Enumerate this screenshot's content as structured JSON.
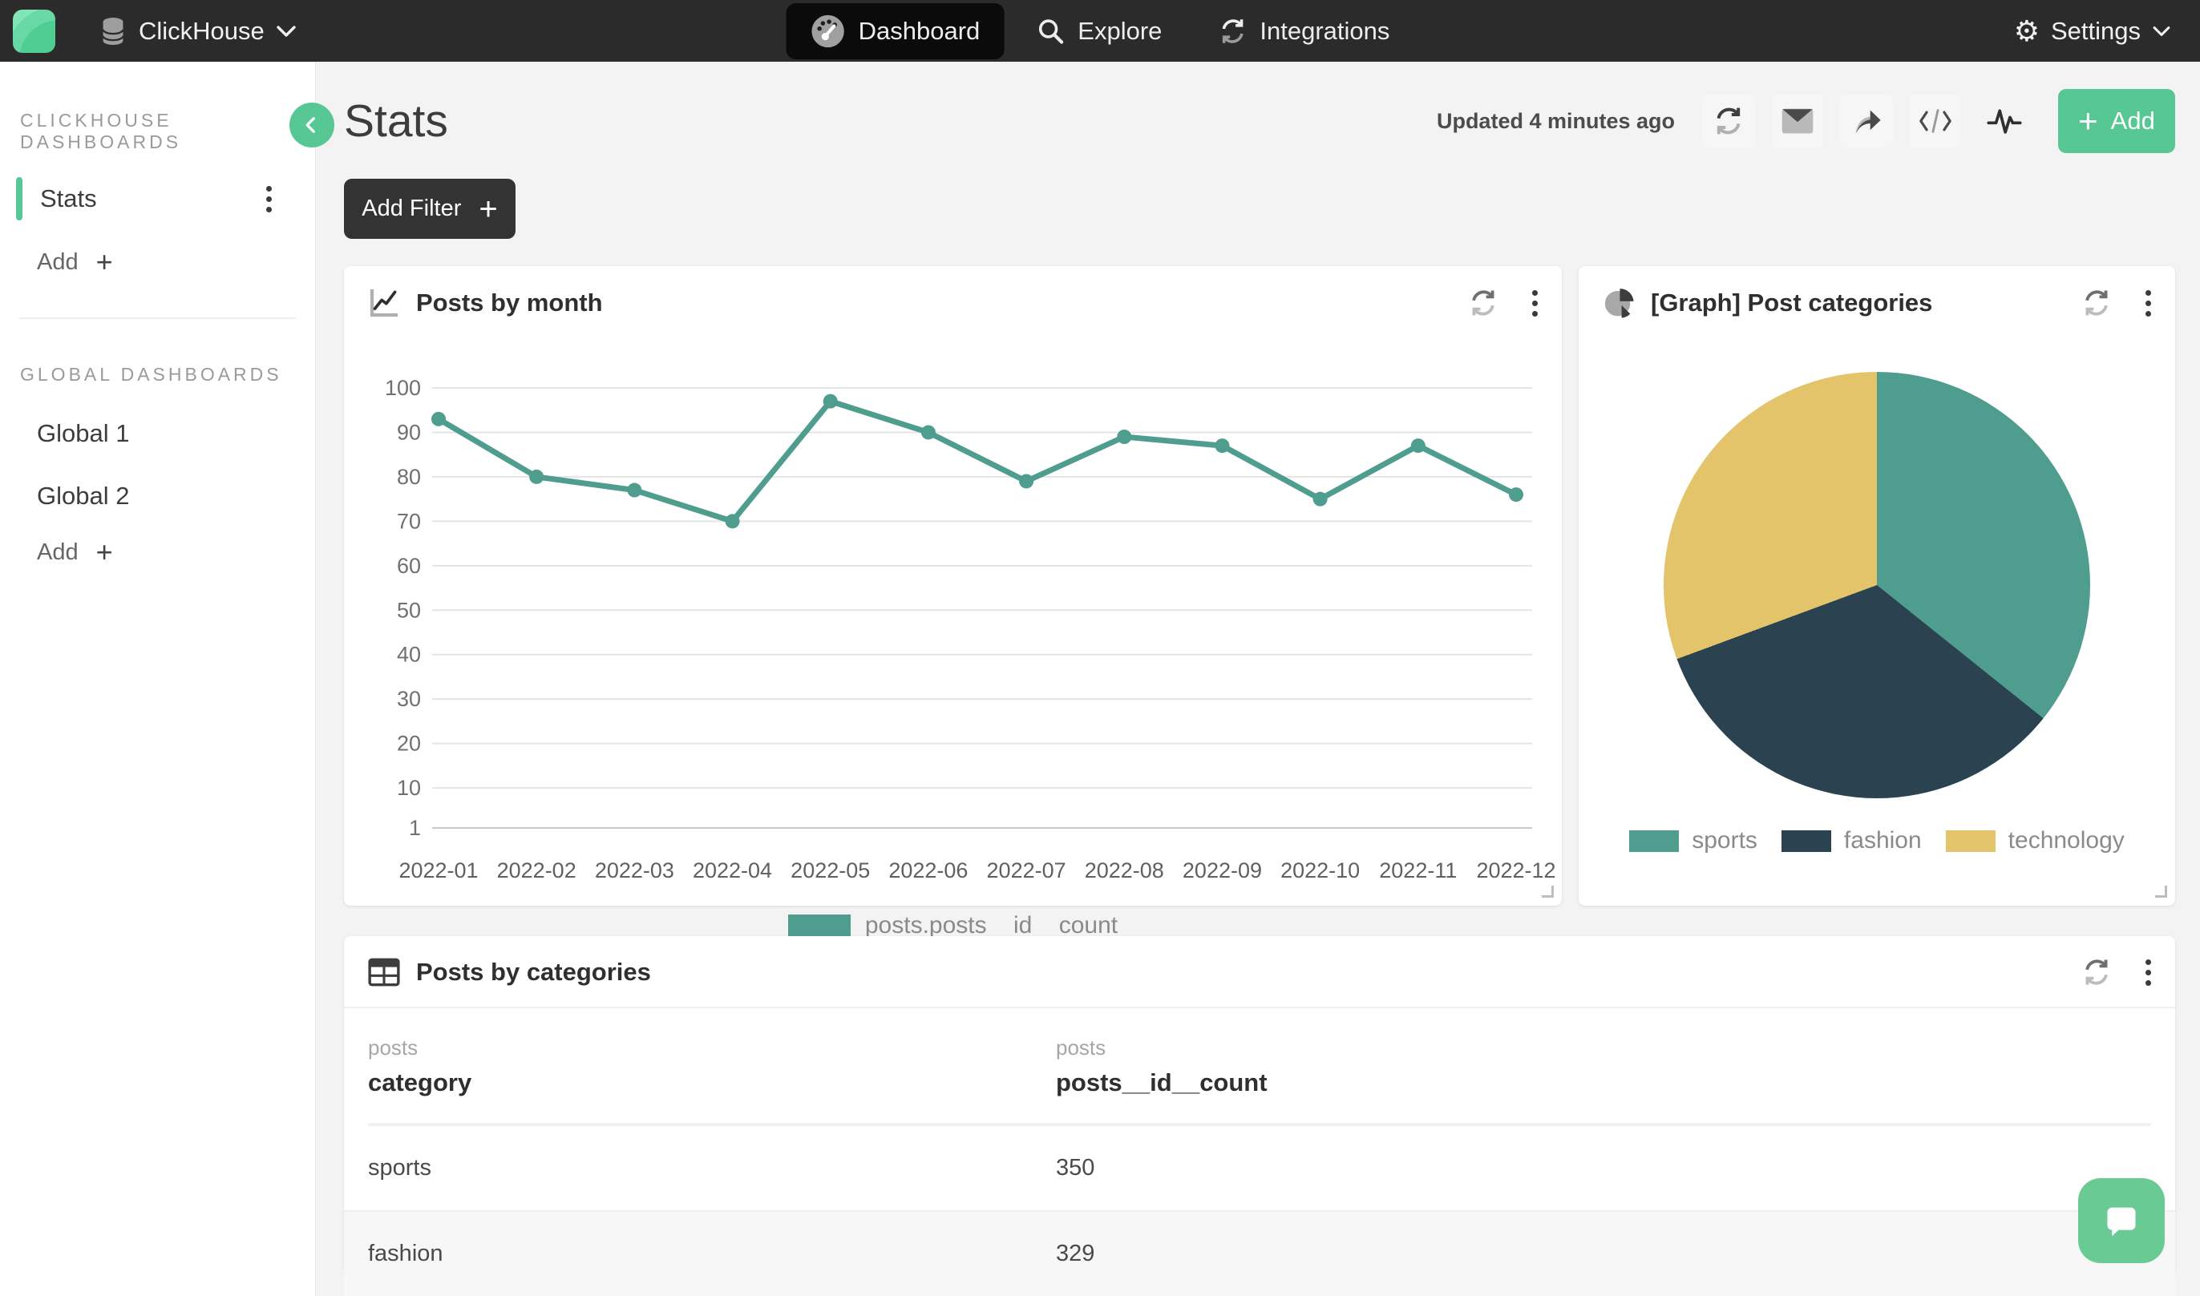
{
  "nav": {
    "brand": "ClickHouse",
    "tabs": [
      {
        "label": "Dashboard",
        "active": true
      },
      {
        "label": "Explore",
        "active": false
      },
      {
        "label": "Integrations",
        "active": false
      }
    ],
    "settings_label": "Settings"
  },
  "sidebar": {
    "sections": [
      {
        "title": "CLICKHOUSE DASHBOARDS",
        "items": [
          {
            "label": "Stats",
            "active": true
          }
        ],
        "add_label": "Add"
      },
      {
        "title": "GLOBAL DASHBOARDS",
        "items": [
          {
            "label": "Global 1"
          },
          {
            "label": "Global 2"
          }
        ],
        "add_label": "Add"
      }
    ]
  },
  "header": {
    "title": "Stats",
    "updated": "Updated 4 minutes ago",
    "add_label": "Add"
  },
  "filter": {
    "add_filter_label": "Add Filter"
  },
  "cards": {
    "line": {
      "title": "Posts by month"
    },
    "pie": {
      "title": "[Graph] Post categories"
    },
    "table": {
      "title": "Posts by categories",
      "columns": [
        {
          "group": "posts",
          "name": "category"
        },
        {
          "group": "posts",
          "name": "posts__id__count"
        }
      ],
      "rows": [
        [
          "sports",
          "350"
        ],
        [
          "fashion",
          "329"
        ]
      ]
    }
  },
  "chart_data": [
    {
      "type": "line",
      "title": "Posts by month",
      "x": [
        "2022-01",
        "2022-02",
        "2022-03",
        "2022-04",
        "2022-05",
        "2022-06",
        "2022-07",
        "2022-08",
        "2022-09",
        "2022-10",
        "2022-11",
        "2022-12"
      ],
      "series": [
        {
          "name": "posts.posts__id__count",
          "values": [
            93,
            80,
            77,
            70,
            97,
            90,
            79,
            89,
            87,
            75,
            87,
            76
          ]
        }
      ],
      "ylim": [
        1,
        100
      ],
      "yticks": [
        1,
        10,
        20,
        30,
        40,
        50,
        60,
        70,
        80,
        90,
        100
      ],
      "grid": true,
      "legend_position": "bottom",
      "color": "#4f9d8e"
    },
    {
      "type": "pie",
      "title": "[Graph] Post categories",
      "slices": [
        {
          "label": "sports",
          "value": 350,
          "color": "#4f9d8e"
        },
        {
          "label": "fashion",
          "value": 329,
          "color": "#2b4350"
        },
        {
          "label": "technology",
          "value": 300,
          "color": "#e3c46b"
        }
      ],
      "legend_position": "bottom"
    }
  ],
  "colors": {
    "accent_green": "#57c894",
    "navbar_bg": "#2b2b2b",
    "active_tab_bg": "#0b0b0b",
    "page_bg": "#f3f3f3",
    "chart_teal": "#4f9d8e",
    "pie_fashion": "#2b4350",
    "pie_technology": "#e3c46b",
    "chat_green": "#69ca93"
  }
}
